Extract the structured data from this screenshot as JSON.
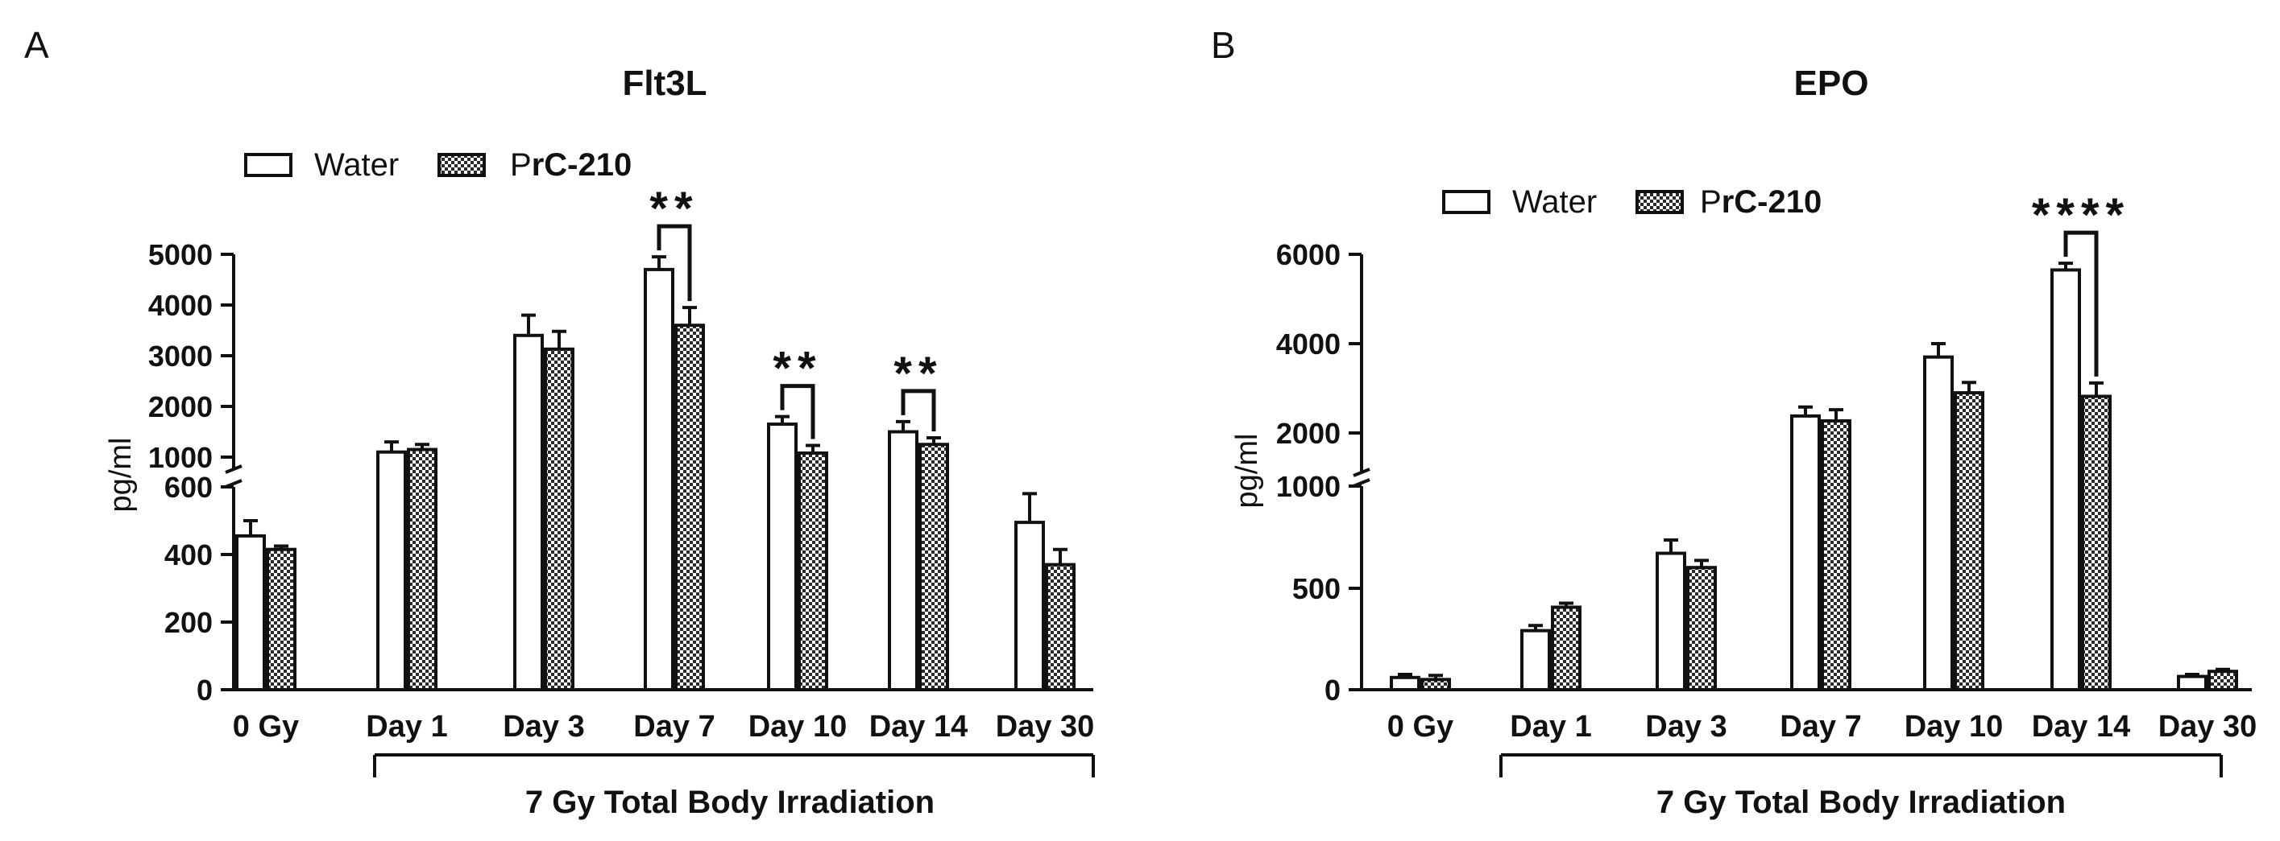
{
  "chart_data": [
    {
      "type": "bar",
      "panel": "A",
      "title": "Flt3L",
      "ylabel": "pg/ml",
      "xlabel": "",
      "categories": [
        "0 Gy",
        "Day 1",
        "Day 3",
        "Day 7",
        "Day 10",
        "Day 14",
        "Day 30"
      ],
      "series": [
        {
          "name": "Water",
          "values": [
            455,
            1100,
            3400,
            4700,
            1650,
            1500,
            495
          ],
          "errors": [
            45,
            200,
            400,
            250,
            150,
            200,
            85
          ],
          "pattern": "open"
        },
        {
          "name": "PrC-210",
          "values": [
            415,
            1150,
            3130,
            3600,
            1080,
            1250,
            370
          ],
          "errors": [
            10,
            100,
            350,
            350,
            150,
            130,
            45
          ],
          "pattern": "checkered"
        }
      ],
      "legend": {
        "prefix": "Water",
        "second_plain": "P",
        "second_bold": "rC-210"
      },
      "y_axis": {
        "type": "broken",
        "lower_range": [
          0,
          600
        ],
        "lower_ticks": [
          "0",
          "200",
          "400",
          "600"
        ],
        "upper_range": [
          1000,
          5000
        ],
        "upper_ticks": [
          "1000",
          "2000",
          "3000",
          "4000",
          "5000"
        ]
      },
      "group_bracket": {
        "label": "7 Gy Total Body Irradiation",
        "from": "Day 1",
        "to": "Day 30"
      },
      "significance": [
        {
          "category": "Day 7",
          "label": "**"
        },
        {
          "category": "Day 10",
          "label": "**"
        },
        {
          "category": "Day 14",
          "label": "**"
        }
      ]
    },
    {
      "type": "bar",
      "panel": "B",
      "title": "EPO",
      "ylabel": "pg/ml",
      "xlabel": "",
      "categories": [
        "0 Gy",
        "Day 1",
        "Day 3",
        "Day 7",
        "Day 10",
        "Day 14",
        "Day 30"
      ],
      "series": [
        {
          "name": "Water",
          "values": [
            60,
            290,
            670,
            2380,
            3700,
            5650,
            65
          ],
          "errors": [
            15,
            25,
            65,
            200,
            300,
            150,
            10
          ],
          "pattern": "open"
        },
        {
          "name": "PrC-210",
          "values": [
            50,
            405,
            600,
            2270,
            2900,
            2820,
            90
          ],
          "errors": [
            20,
            20,
            35,
            250,
            230,
            300,
            10
          ],
          "pattern": "checkered"
        }
      ],
      "legend": {
        "prefix": "Water",
        "second_plain": "P",
        "second_bold": "rC-210"
      },
      "y_axis": {
        "type": "broken",
        "lower_range": [
          0,
          1000
        ],
        "lower_ticks": [
          "0",
          "500",
          "1000"
        ],
        "upper_range": [
          1000,
          6000
        ],
        "upper_ticks": [
          "2000",
          "4000",
          "6000"
        ]
      },
      "group_bracket": {
        "label": "7 Gy Total Body Irradiation",
        "from": "Day 1",
        "to": "Day 30"
      },
      "significance": [
        {
          "category": "Day 14",
          "label": "****"
        }
      ]
    }
  ]
}
